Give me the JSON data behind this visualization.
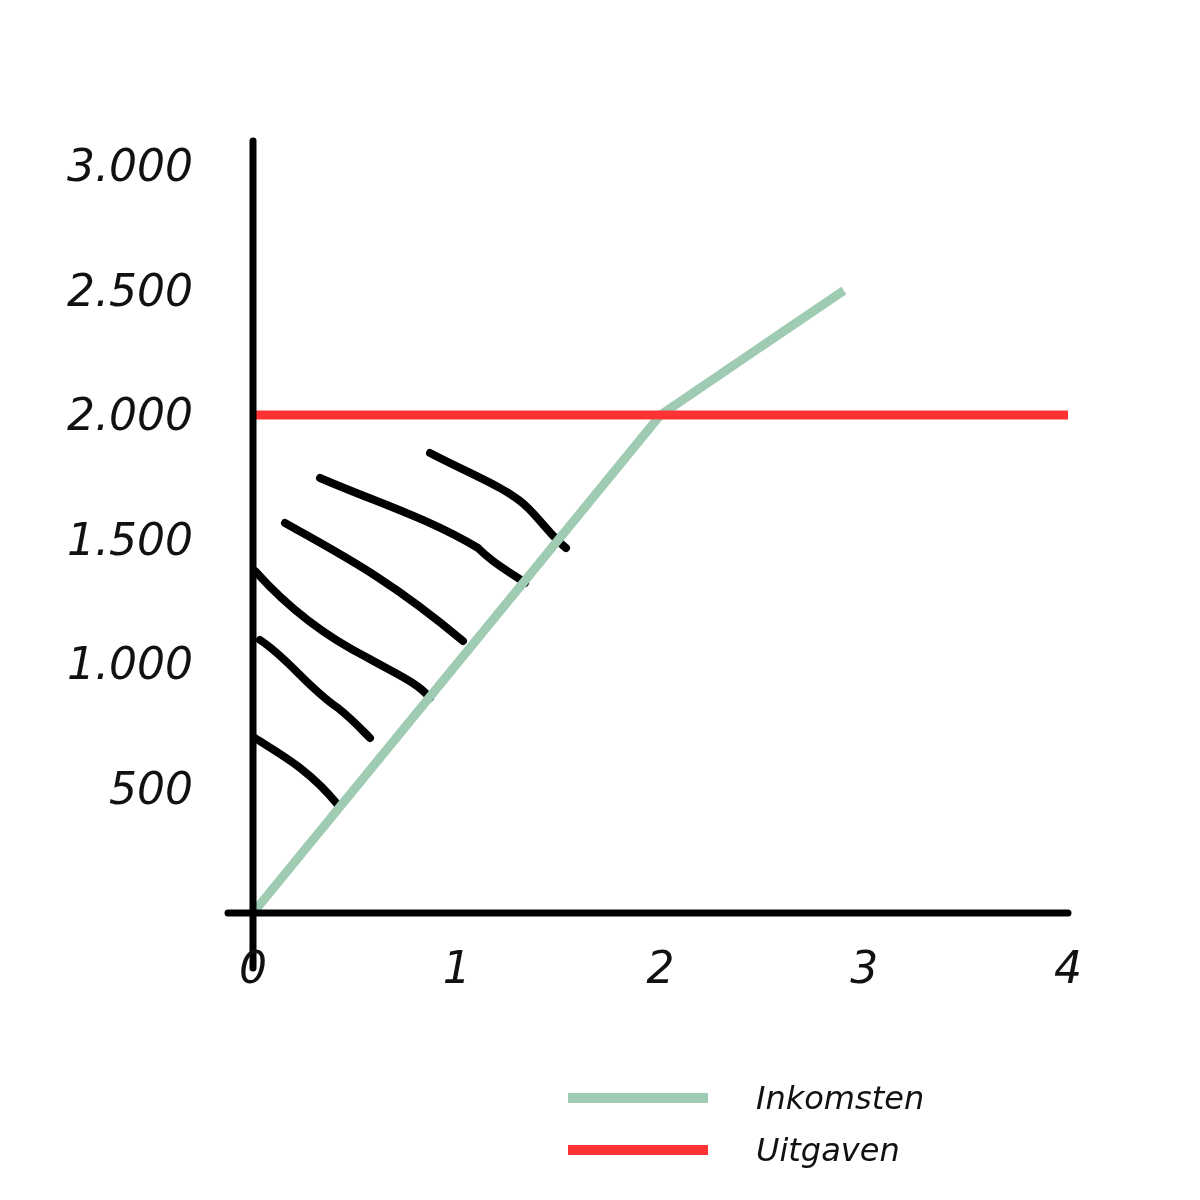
{
  "chart_data": {
    "type": "line",
    "xlim": [
      0,
      4
    ],
    "xticks": [
      0,
      1,
      2,
      3,
      4
    ],
    "ylim": [
      0,
      3100
    ],
    "yticks": [
      {
        "value": 500,
        "label": "500"
      },
      {
        "value": 1000,
        "label": "1.000"
      },
      {
        "value": 1500,
        "label": "1.500"
      },
      {
        "value": 2000,
        "label": "2.000"
      },
      {
        "value": 2500,
        "label": "2.500"
      },
      {
        "value": 3000,
        "label": "3.000"
      }
    ],
    "series": [
      {
        "name": "Inkomsten",
        "color": "#a0cbb3",
        "x": [
          0,
          2,
          2.9
        ],
        "values": [
          0,
          2000,
          2500
        ]
      },
      {
        "name": "Uitgaven",
        "color": "#ff3333",
        "x": [
          0,
          4
        ],
        "values": [
          2000,
          2000
        ]
      }
    ],
    "legend": "bottom right"
  }
}
